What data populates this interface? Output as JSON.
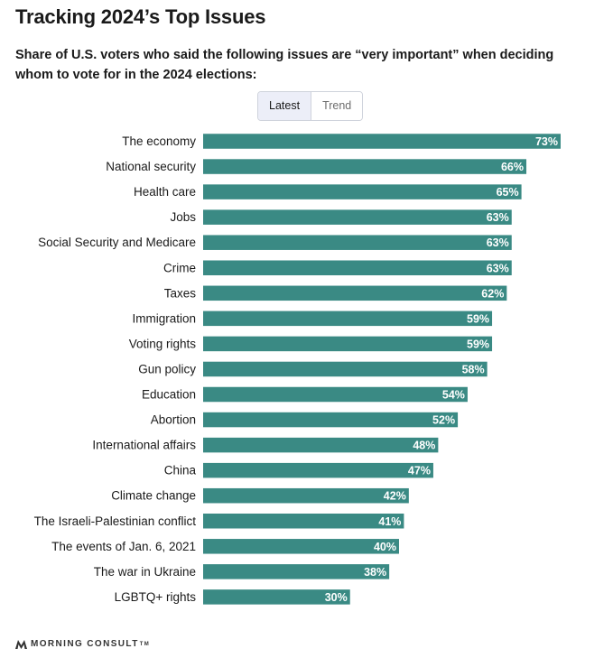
{
  "header": {
    "title": "Tracking 2024’s Top Issues",
    "subtitle": "Share of U.S. voters who said the following issues are “very important” when deciding whom to vote for in the 2024 elections:"
  },
  "toggle": {
    "latest_label": "Latest",
    "trend_label": "Trend",
    "selected": "Latest"
  },
  "chart_data": {
    "type": "bar",
    "orientation": "horizontal",
    "categories": [
      "The economy",
      "National security",
      "Health care",
      "Jobs",
      "Social Security and Medicare",
      "Crime",
      "Taxes",
      "Immigration",
      "Voting rights",
      "Gun policy",
      "Education",
      "Abortion",
      "International affairs",
      "China",
      "Climate change",
      "The Israeli-Palestinian conflict",
      "The events of Jan. 6, 2021",
      "The war in Ukraine",
      "LGBTQ+ rights"
    ],
    "values": [
      73,
      66,
      65,
      63,
      63,
      63,
      62,
      59,
      59,
      58,
      54,
      52,
      48,
      47,
      42,
      41,
      40,
      38,
      30
    ],
    "value_suffix": "%",
    "xlim": [
      0,
      100
    ],
    "grid": false,
    "bar_color": "#3a8a84"
  },
  "footer": {
    "logo_text": "MORNING CONSULT",
    "logo_mark": "TM"
  }
}
